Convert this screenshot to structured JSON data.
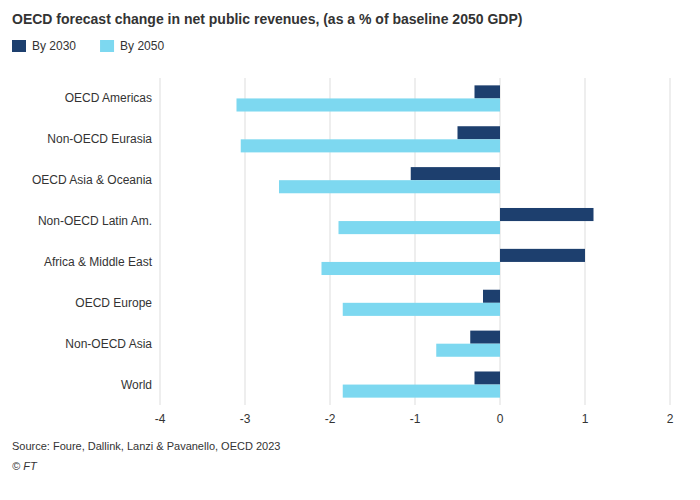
{
  "chart_data": {
    "type": "bar",
    "orientation": "horizontal",
    "title": "OECD forecast change in net public revenues, (as a % of baseline 2050 GDP)",
    "categories": [
      "OECD Americas",
      "Non-OECD Eurasia",
      "OECD Asia & Oceania",
      "Non-OECD Latin Am.",
      "Africa & Middle East",
      "OECD Europe",
      "Non-OECD Asia",
      "World"
    ],
    "series": [
      {
        "name": "By 2030",
        "color": "#1d3f6e",
        "values": [
          -0.3,
          -0.5,
          -1.05,
          1.1,
          1.0,
          -0.2,
          -0.35,
          -0.3
        ]
      },
      {
        "name": "By 2050",
        "color": "#7dd8f0",
        "values": [
          -3.1,
          -3.05,
          -2.6,
          -1.9,
          -2.1,
          -1.85,
          -0.75,
          -1.85
        ]
      }
    ],
    "xlim": [
      -4,
      2
    ],
    "xticks": [
      -4,
      -3,
      -2,
      -1,
      0,
      1,
      2
    ],
    "grid": true,
    "legend": "top",
    "annotations": [
      "Source: Foure, Dallink, Lanzi & Pavanello, OECD 2023",
      "© FT"
    ]
  }
}
